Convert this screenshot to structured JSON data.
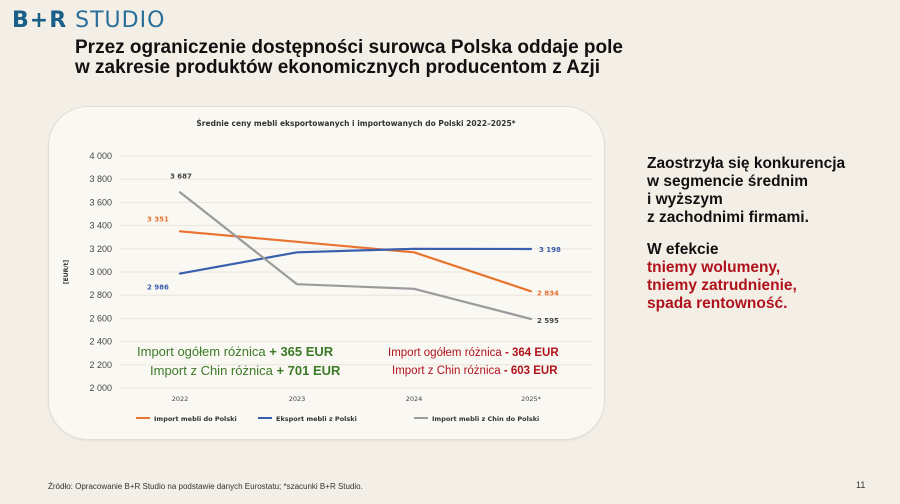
{
  "logo": {
    "brand": "B+R",
    "studio": "STUDIO"
  },
  "slide": {
    "title_line1": "Przez ograniczenie dostępności surowca Polska oddaje pole",
    "title_line2": "w zakresie produktów ekonomicznych producentom z Azji",
    "side_lines_black": [
      "Zaostrzyła się konkurencja",
      "w segmencie średnim",
      "i wyższym",
      "z zachodnimi firmami."
    ],
    "side_effect": "W efekcie",
    "side_lines_red": [
      "tniemy wolumeny,",
      "tniemy zatrudnienie,",
      "spada rentowność."
    ],
    "source": "Źródło: Opracowanie B+R Studio na podstawie danych Eurostatu; *szacunki B+R Studio.",
    "page_number": "11"
  },
  "colors": {
    "import": "#e8742f",
    "export": "#3a5fae",
    "china": "#9b9b9b",
    "green_note": "#3c7a28",
    "red_note": "#b0121b",
    "logo": "#1a5f8a"
  },
  "chart_data": {
    "type": "line",
    "title": "Średnie ceny mebli eksportowanych i importowanych do Polski 2022–2025*",
    "ylabel": "[EUR/t]",
    "xlabel": "",
    "categories": [
      "2022",
      "2023",
      "2024",
      "2025*"
    ],
    "ylim": [
      2000,
      4000
    ],
    "yticks": [
      "2 000",
      "2 200",
      "2 400",
      "2 600",
      "2 800",
      "3 000",
      "3 200",
      "3 400",
      "3 600",
      "3 800",
      "4 000"
    ],
    "grid": true,
    "legend": "bottom",
    "series": [
      {
        "name": "Import mebli do Polski",
        "color_key": "import",
        "values": [
          3351,
          3260,
          3170,
          2834
        ],
        "labels": [
          {
            "index": 0,
            "text": "3 351"
          },
          {
            "index": 3,
            "text": "2 834"
          }
        ]
      },
      {
        "name": "Eksport mebli z Polski",
        "color_key": "export",
        "values": [
          2986,
          3170,
          3200,
          3198
        ],
        "labels": [
          {
            "index": 0,
            "text": "2 986"
          },
          {
            "index": 3,
            "text": "3 198"
          }
        ]
      },
      {
        "name": "Import mebli z Chin do Polski",
        "color_key": "china",
        "values": [
          3687,
          2895,
          2855,
          2595
        ],
        "labels": [
          {
            "index": 0,
            "text": "3 687"
          },
          {
            "index": 3,
            "text": "2 595"
          }
        ]
      }
    ],
    "annotations": {
      "green": [
        {
          "text": "Import ogółem różnica ",
          "bold": "+ 365 EUR"
        },
        {
          "text": "Import z Chin różnica ",
          "bold": "+ 701 EUR"
        }
      ],
      "red": [
        {
          "text": "Import ogółem różnica ",
          "bold": "- 364 EUR"
        },
        {
          "text": "Import z Chin różnica  ",
          "bold": "- 603 EUR"
        }
      ]
    }
  }
}
